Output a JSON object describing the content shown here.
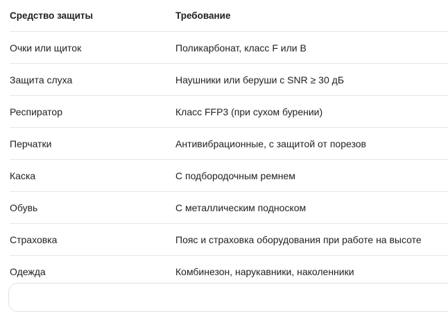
{
  "table": {
    "headers": [
      "Средство защиты",
      "Требование"
    ],
    "rows": [
      [
        "Очки или щиток",
        "Поликарбонат, класс F или B"
      ],
      [
        "Защита слуха",
        "Наушники или беруши с SNR ≥ 30 дБ"
      ],
      [
        "Респиратор",
        "Класс FFP3 (при сухом бурении)"
      ],
      [
        "Перчатки",
        "Антивибрационные, с защитой от порезов"
      ],
      [
        "Каска",
        "С подбородочным ремнем"
      ],
      [
        "Обувь",
        "С металлическим подноском"
      ],
      [
        "Страховка",
        "Пояс и страховка оборудования при работе на высоте"
      ],
      [
        "Одежда",
        "Комбинезон, нарукавники, наколенники"
      ]
    ]
  }
}
